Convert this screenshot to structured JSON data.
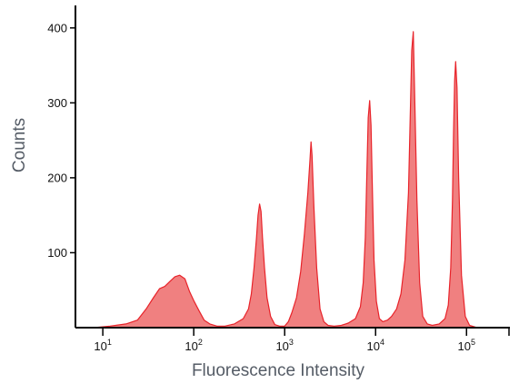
{
  "chart_data": {
    "type": "area",
    "xlabel": "Fluorescence Intensity",
    "ylabel": "Counts",
    "x_scale": "log",
    "xlim": [
      5,
      300000
    ],
    "ylim": [
      0,
      430
    ],
    "x_ticks": [
      {
        "value": 10,
        "base": "10",
        "exp": "1"
      },
      {
        "value": 100,
        "base": "10",
        "exp": "2"
      },
      {
        "value": 1000,
        "base": "10",
        "exp": "3"
      },
      {
        "value": 10000,
        "base": "10",
        "exp": "4"
      },
      {
        "value": 100000,
        "base": "10",
        "exp": "5"
      }
    ],
    "y_ticks": [
      100,
      200,
      300,
      400
    ],
    "grid": false,
    "fill_color": "#f08080",
    "line_color": "#e8232a",
    "series": [
      {
        "x": [
          8,
          12,
          18,
          24,
          30,
          36,
          42,
          48,
          55,
          62,
          70,
          80,
          90,
          100,
          115,
          130,
          150,
          180,
          220,
          280,
          350,
          400,
          430,
          460,
          490,
          510,
          530,
          550,
          570,
          600,
          640,
          700,
          780,
          880,
          1000,
          1100,
          1200,
          1350,
          1500,
          1650,
          1800,
          1900,
          1950,
          2000,
          2100,
          2250,
          2450,
          2700,
          3000,
          3500,
          4200,
          5000,
          6000,
          6800,
          7300,
          7700,
          8000,
          8300,
          8600,
          8900,
          9200,
          9600,
          10200,
          11000,
          12000,
          13500,
          15000,
          17000,
          19000,
          21000,
          23000,
          24000,
          25000,
          26000,
          27000,
          28500,
          30500,
          33000,
          37000,
          42000,
          50000,
          58000,
          63000,
          67000,
          70000,
          72000,
          74000,
          76000,
          78500,
          82000,
          88000,
          97000,
          108000,
          130000
        ],
        "y": [
          0,
          2,
          5,
          10,
          25,
          40,
          52,
          55,
          62,
          68,
          70,
          65,
          48,
          36,
          22,
          10,
          5,
          2,
          2,
          5,
          12,
          25,
          45,
          80,
          120,
          150,
          165,
          155,
          120,
          80,
          40,
          15,
          4,
          2,
          2,
          8,
          20,
          40,
          75,
          125,
          180,
          225,
          248,
          230,
          160,
          80,
          25,
          8,
          3,
          2,
          3,
          6,
          12,
          28,
          60,
          120,
          200,
          280,
          303,
          270,
          190,
          90,
          35,
          12,
          8,
          10,
          15,
          25,
          45,
          90,
          180,
          280,
          370,
          395,
          300,
          170,
          60,
          15,
          5,
          3,
          5,
          12,
          30,
          80,
          170,
          260,
          330,
          355,
          320,
          200,
          70,
          15,
          3,
          0
        ]
      }
    ]
  }
}
